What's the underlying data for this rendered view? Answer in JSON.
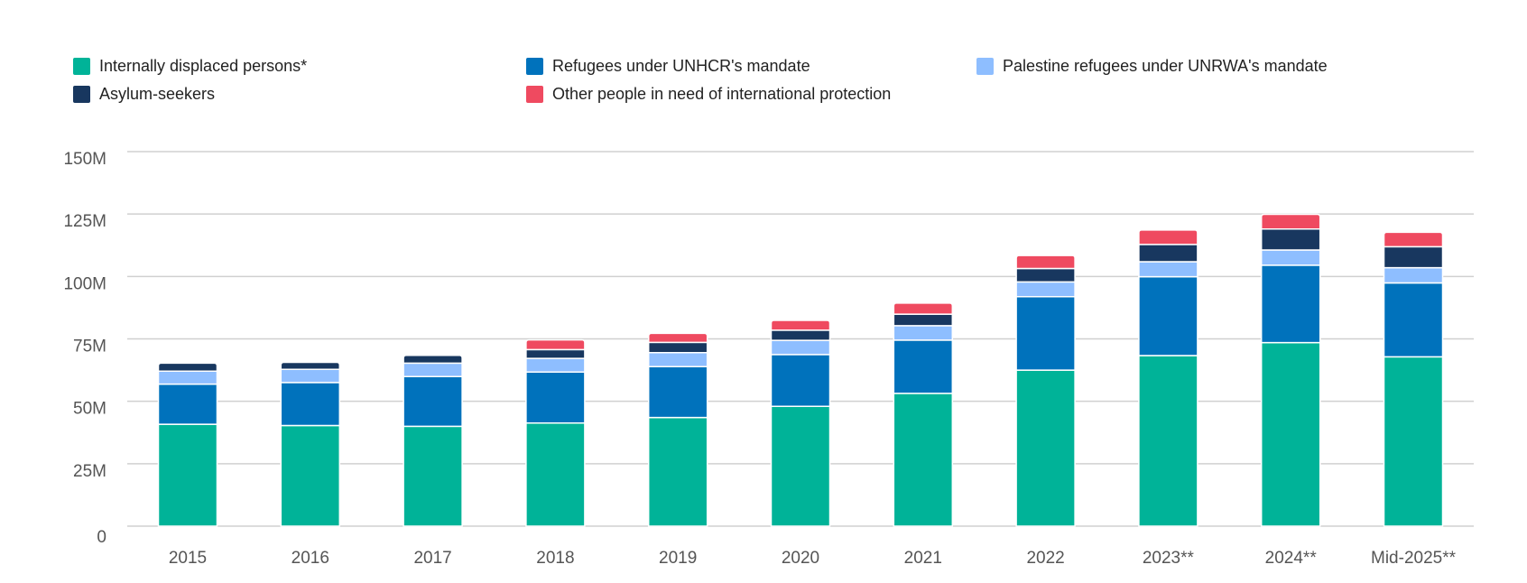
{
  "chart_data": {
    "type": "bar",
    "stacked": true,
    "categories": [
      "2015",
      "2016",
      "2017",
      "2018",
      "2019",
      "2020",
      "2021",
      "2022",
      "2023**",
      "2024**",
      "Mid-2025**"
    ],
    "series": [
      {
        "name": "Internally displaced persons*",
        "color": "#00b398",
        "values": [
          40.8,
          40.3,
          40.0,
          41.3,
          43.5,
          48.0,
          53.2,
          62.5,
          68.3,
          73.5,
          67.8
        ]
      },
      {
        "name": "Refugees under UNHCR's mandate",
        "color": "#0072bc",
        "values": [
          16.1,
          17.2,
          19.9,
          20.4,
          20.4,
          20.7,
          21.3,
          29.4,
          31.6,
          31.0,
          29.6
        ]
      },
      {
        "name": "Palestine refugees under UNRWA's mandate",
        "color": "#8ebeff",
        "values": [
          5.2,
          5.3,
          5.4,
          5.5,
          5.6,
          5.7,
          5.8,
          5.9,
          6.0,
          6.1,
          6.1
        ]
      },
      {
        "name": "Asylum-seekers",
        "color": "#18375f",
        "values": [
          3.2,
          2.8,
          3.1,
          3.5,
          4.1,
          4.1,
          4.6,
          5.4,
          6.9,
          8.4,
          8.4
        ]
      },
      {
        "name": "Other people in need of international protection",
        "color": "#ef4a60",
        "values": [
          0,
          0,
          0,
          3.9,
          3.6,
          3.9,
          4.4,
          5.2,
          5.8,
          5.9,
          5.8
        ]
      }
    ],
    "y_ticks": [
      "0",
      "25M",
      "50M",
      "75M",
      "100M",
      "125M",
      "150M"
    ],
    "ylim": [
      0,
      150
    ],
    "unit": "millions",
    "grid": true,
    "legend_position": "top-left"
  }
}
